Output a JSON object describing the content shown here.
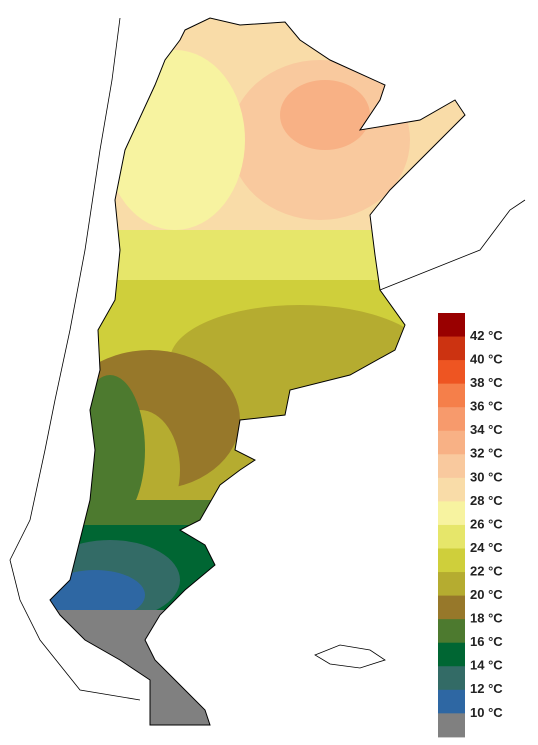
{
  "legend": {
    "labels": [
      "42 °C",
      "40 °C",
      "38 °C",
      "36 °C",
      "34 °C",
      "32 °C",
      "30 °C",
      "28 °C",
      "26 °C",
      "24 °C",
      "22 °C",
      "20 °C",
      "18 °C",
      "16 °C",
      "14 °C",
      "12 °C",
      "10 °C"
    ],
    "colors": [
      "#990000",
      "#cc3311",
      "#ee5522",
      "#f57f4a",
      "#f79a6c",
      "#f8b185",
      "#f9c99e",
      "#f9dca8",
      "#f7f3a0",
      "#e6e66a",
      "#cfcf3b",
      "#b5ac30",
      "#97782a",
      "#4d7a2f",
      "#006633",
      "#336b66",
      "#2e67a3",
      "#808080"
    ]
  }
}
